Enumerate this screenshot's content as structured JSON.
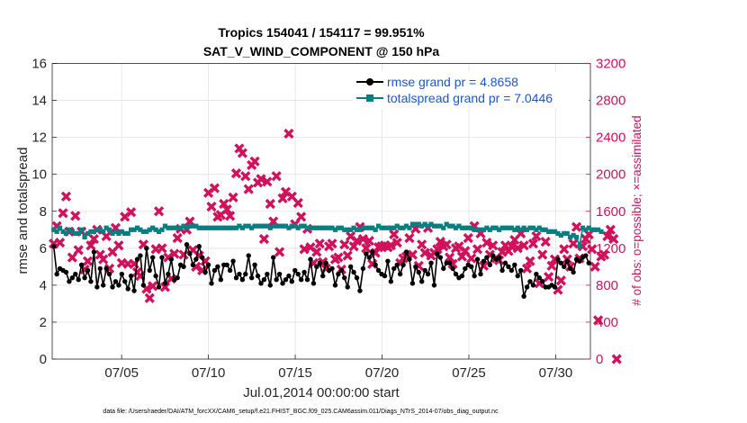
{
  "chart_data": {
    "type": "line",
    "title_line1": "Tropics 154041 / 154117 = 99.951%",
    "title_line2": "SAT_V_WIND_COMPONENT @ 150 hPa",
    "xlabel": "Jul.01,2014 00:00:00 start",
    "ylabel_left": "rmse and totalspread",
    "ylabel_right": "# of obs: o=possible; ×=assimilated",
    "footer": "data file: /Users/raeder/DAI/ATM_forcXX/CAM6_setup/f.e21.FHIST_BGC.f09_025.CAM6assim.011/Diags_NTrS_2014-07/obs_diag_output.nc",
    "xlim": [
      1,
      32
    ],
    "ylim_left": [
      0,
      16
    ],
    "ylim_right": [
      0,
      3200
    ],
    "x_ticks": [
      5,
      10,
      15,
      20,
      25,
      30
    ],
    "x_tick_labels": [
      "07/05",
      "07/10",
      "07/15",
      "07/20",
      "07/25",
      "07/30"
    ],
    "y_ticks_left": [
      "0",
      "2",
      "4",
      "6",
      "8",
      "10",
      "12",
      "14",
      "16"
    ],
    "y_ticks_right": [
      "0",
      "400",
      "800",
      "1200",
      "1600",
      "2000",
      "2400",
      "2800",
      "3200"
    ],
    "colors": {
      "rmse": "#000000",
      "spread": "#008080",
      "obs": "#d0115c",
      "legend_text": "#1a56d6"
    },
    "series": [
      {
        "name": "rmse grand pr = 4.8658",
        "axis": "left",
        "marker": "filled-circle",
        "values": [
          6.1,
          4.6,
          4.9,
          4.8,
          4.7,
          4.2,
          4.4,
          4.6,
          4.3,
          5.1,
          4.4,
          4.8,
          4.2,
          5.8,
          3.9,
          4.9,
          4.0,
          4.9,
          4.6,
          3.9,
          4.2,
          4.0,
          4.6,
          4.2,
          3.8,
          4.5,
          3.7,
          5.4,
          5.6,
          4.0,
          6.0,
          4.8,
          5.5,
          4.5,
          3.9,
          5.5,
          4.1,
          4.6,
          5.4,
          4.3,
          4.4,
          5.1,
          5.0,
          6.2,
          5.7,
          5.1,
          5.4,
          6.1,
          5.5,
          4.7,
          5.1,
          4.1,
          4.8,
          5.0,
          4.3,
          5.1,
          5.1,
          4.8,
          5.3,
          4.4,
          4.6,
          4.3,
          4.6,
          5.6,
          4.4,
          5.1,
          4.5,
          4.1,
          4.3,
          4.6,
          4.0,
          5.5,
          4.3,
          4.6,
          4.1,
          4.3,
          4.5,
          4.2,
          4.8,
          4.6,
          4.3,
          4.7,
          4.3,
          5.4,
          4.1,
          5.0,
          5.2,
          4.5,
          5.2,
          4.8,
          4.9,
          4.0,
          4.6,
          4.8,
          4.4,
          3.9,
          5.0,
          4.7,
          4.4,
          3.7,
          4.9,
          5.7,
          5.5,
          5.8,
          5.1,
          4.8,
          4.6,
          4.5,
          5.3,
          4.2,
          4.9,
          5.1,
          4.6,
          5.1,
          5.8,
          5.4,
          4.1,
          5.0,
          4.7,
          4.2,
          4.8,
          4.6,
          5.2,
          4.0,
          5.7,
          5.5,
          4.9,
          5.2,
          5.2,
          4.9,
          4.6,
          4.4,
          4.5,
          4.9,
          5.1,
          5.0,
          4.5,
          5.4,
          4.6,
          5.3,
          5.5,
          5.1,
          5.6,
          5.4,
          5.5,
          4.8,
          5.2,
          5.0,
          4.8,
          5.1,
          4.5,
          4.8,
          3.4,
          3.9,
          4.2,
          4.0,
          4.6,
          4.4,
          4.2,
          3.9,
          3.9,
          4.0,
          3.9,
          5.4,
          5.2,
          5.0,
          5.3,
          4.9,
          4.7,
          5.4,
          5.3,
          5.5,
          5.6,
          5.2
        ]
      },
      {
        "name": "totalspread grand pr = 7.0446",
        "axis": "left",
        "marker": "filled-square",
        "values": [
          7.0,
          6.9,
          7.1,
          6.9,
          6.8,
          7.0,
          6.9,
          6.8,
          6.8,
          7.0,
          6.6,
          6.8,
          6.9,
          6.9,
          7.0,
          7.0,
          6.9,
          7.1,
          7.0,
          6.8,
          6.9,
          6.8,
          6.9,
          6.8,
          6.8,
          7.0,
          7.0,
          7.1,
          7.0,
          6.9,
          6.9,
          7.0,
          7.1,
          7.0,
          6.9,
          7.0,
          7.2,
          7.1,
          7.1,
          7.1,
          7.1,
          7.1,
          7.2,
          7.1,
          7.2,
          7.2,
          7.2,
          7.1,
          7.1,
          7.1,
          7.1,
          7.1,
          7.1,
          7.1,
          7.1,
          7.1,
          7.1,
          7.1,
          7.1,
          7.1,
          7.2,
          7.1,
          7.2,
          7.2,
          7.1,
          7.2,
          7.2,
          7.2,
          7.2,
          7.2,
          7.1,
          7.2,
          7.2,
          7.2,
          7.2,
          7.2,
          7.1,
          7.2,
          7.2,
          7.1,
          7.2,
          7.2,
          7.1,
          7.1,
          7.1,
          7.1,
          7.1,
          7.1,
          7.1,
          7.1,
          7.1,
          7.0,
          7.1,
          7.1,
          7.0,
          7.0,
          7.0,
          7.1,
          7.0,
          7.0,
          7.1,
          7.1,
          7.1,
          7.1,
          7.0,
          7.2,
          7.1,
          7.1,
          7.1,
          7.1,
          7.1,
          7.2,
          7.1,
          7.1,
          7.2,
          7.1,
          7.3,
          7.3,
          7.3,
          7.2,
          7.3,
          7.2,
          7.3,
          7.2,
          7.2,
          7.2,
          7.1,
          7.3,
          7.2,
          7.2,
          7.1,
          7.2,
          7.1,
          7.1,
          7.1,
          7.1,
          7.0,
          7.0,
          7.0,
          7.0,
          7.1,
          7.0,
          7.1,
          7.1,
          7.0,
          7.1,
          7.1,
          7.1,
          7.1,
          7.0,
          7.1,
          7.0,
          7.1,
          7.0,
          7.1,
          7.1,
          7.0,
          7.1,
          7.0,
          7.0,
          6.9,
          6.9,
          6.9,
          6.8,
          6.7,
          6.8,
          6.8,
          6.6,
          6.7,
          6.6,
          6.1,
          7.1,
          7.0,
          7.1,
          7.0,
          7.0,
          7.0,
          6.9
        ]
      },
      {
        "name": "assimilated obs",
        "axis": "right",
        "marker": "x",
        "values": [
          1250,
          1440,
          1260,
          1580,
          1760,
          1380,
          1100,
          1550,
          1180,
          1380,
          970,
          1060,
          1230,
          1300,
          1400,
          1130,
          1080,
          1330,
          980,
          1160,
          1420,
          1230,
          1040,
          1540,
          1030,
          1590,
          1030,
          940,
          900,
          1240,
          760,
          660,
          790,
          1190,
          1600,
          1200,
          780,
          1100,
          870,
          1140,
          1310,
          1410,
          1130,
          1400,
          1490,
          1180,
          1000,
          1120,
          960,
          1060,
          1800,
          1650,
          1850,
          1540,
          1560,
          1680,
          1620,
          1550,
          1750,
          2010,
          2280,
          2230,
          1980,
          1840,
          2100,
          2140,
          1910,
          1950,
          1300,
          1920,
          1680,
          1490,
          1980,
          1160,
          1740,
          1810,
          2440,
          1760,
          1460,
          1690,
          1540,
          1190,
          1410,
          1210,
          1040,
          1160,
          1250,
          1050,
          980,
          1220,
          1250,
          1080,
          1100,
          970,
          1240,
          1120,
          1330,
          1220,
          1280,
          1430,
          1300,
          1200,
          1280,
          1030,
          1150,
          1210,
          1220,
          1230,
          1210,
          1230,
          1350,
          1260,
          1040,
          1090,
          1110,
          1310,
          1130,
          1410,
          1010,
          1240,
          1150,
          1420,
          1120,
          1150,
          1190,
          1270,
          1220,
          1240,
          1100,
          1030,
          1200,
          1220,
          1110,
          1170,
          1310,
          1090,
          1440,
          1190,
          1360,
          1010,
          1260,
          1130,
          1230,
          1090,
          1070,
          1160,
          1230,
          1170,
          1220,
          1290,
          1200,
          1360,
          1230,
          980,
          1060,
          1250,
          1330,
          820,
          1130,
          1270,
          890,
          1010,
          1080,
          750,
          850,
          1190,
          1080,
          1000,
          1250,
          1430,
          1090,
          1220,
          1300,
          1350,
          1190,
          1000,
          420,
          1110,
          1130,
          1330,
          1400,
          1300,
          0
        ]
      }
    ],
    "legend": [
      "rmse grand pr = 4.8658",
      "totalspread grand pr = 7.0446"
    ]
  }
}
